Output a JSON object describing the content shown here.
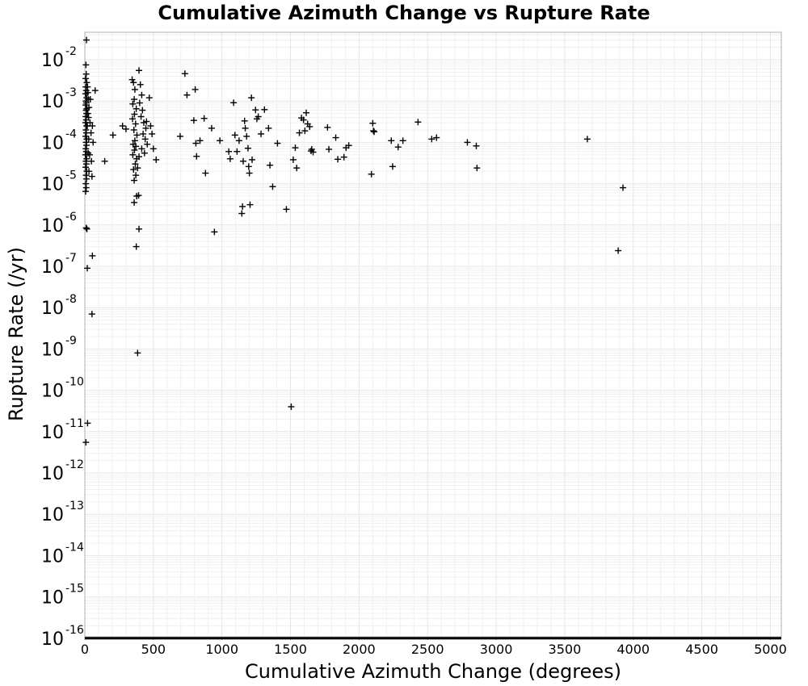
{
  "chart_data": {
    "type": "scatter",
    "title": "Cumulative Azimuth Change vs Rupture Rate",
    "xlabel": "Cumulative Azimuth Change (degrees)",
    "ylabel": "Rupture Rate (/yr)",
    "xlim": [
      0,
      5080
    ],
    "ylim": [
      1e-16,
      0.045
    ],
    "yscale": "log",
    "grid": true,
    "marker": "+",
    "marker_color": "#000000",
    "x_ticks": [
      "0",
      "500",
      "1000",
      "1500",
      "2000",
      "2500",
      "3000",
      "3500",
      "4000",
      "4500",
      "5000"
    ],
    "y_ticks": [
      {
        "base": "10",
        "exp": "-2"
      },
      {
        "base": "10",
        "exp": "-3"
      },
      {
        "base": "10",
        "exp": "-4"
      },
      {
        "base": "10",
        "exp": "-5"
      },
      {
        "base": "10",
        "exp": "-6"
      },
      {
        "base": "10",
        "exp": "-7"
      },
      {
        "base": "10",
        "exp": "-8"
      },
      {
        "base": "10",
        "exp": "-9"
      },
      {
        "base": "10",
        "exp": "-10"
      },
      {
        "base": "10",
        "exp": "-11"
      },
      {
        "base": "10",
        "exp": "-12"
      },
      {
        "base": "10",
        "exp": "-13"
      },
      {
        "base": "10",
        "exp": "-14"
      },
      {
        "base": "10",
        "exp": "-15"
      },
      {
        "base": "10",
        "exp": "-16"
      }
    ],
    "series": [
      {
        "points": [
          [
            12,
            0.03
          ],
          [
            8,
            0.0075
          ],
          [
            10,
            0.0045
          ],
          [
            6,
            0.0035
          ],
          [
            14,
            0.0028
          ],
          [
            7,
            0.0022
          ],
          [
            10,
            0.0018
          ],
          [
            5,
            0.0015
          ],
          [
            13,
            0.0012
          ],
          [
            8,
            0.001
          ],
          [
            11,
            0.0009
          ],
          [
            6,
            0.0008
          ],
          [
            14,
            0.00065
          ],
          [
            9,
            0.0006
          ],
          [
            12,
            0.0005
          ],
          [
            7,
            0.00042
          ],
          [
            10,
            0.00035
          ],
          [
            5,
            0.0003
          ],
          [
            13,
            0.00025
          ],
          [
            8,
            0.0002
          ],
          [
            11,
            0.00017
          ],
          [
            6,
            0.00014
          ],
          [
            14,
            0.00012
          ],
          [
            9,
            0.0001
          ],
          [
            12,
            8.5e-05
          ],
          [
            7,
            7e-05
          ],
          [
            10,
            6e-05
          ],
          [
            5,
            5e-05
          ],
          [
            13,
            4e-05
          ],
          [
            8,
            3.5e-05
          ],
          [
            11,
            3e-05
          ],
          [
            6,
            2.5e-05
          ],
          [
            14,
            2e-05
          ],
          [
            9,
            1.6e-05
          ],
          [
            12,
            1.3e-05
          ],
          [
            7,
            1e-05
          ],
          [
            10,
            8e-06
          ],
          [
            6,
            6.5e-06
          ],
          [
            20,
            0.0022
          ],
          [
            25,
            0.0011
          ],
          [
            22,
            0.0005
          ],
          [
            18,
            0.00025
          ],
          [
            28,
            0.00012
          ],
          [
            24,
            5.5e-05
          ],
          [
            30,
            2e-05
          ],
          [
            22,
            0.0016
          ],
          [
            30,
            0.0007
          ],
          [
            40,
            0.0011
          ],
          [
            45,
            0.00017
          ],
          [
            60,
            0.0001
          ],
          [
            75,
            0.0018
          ],
          [
            35,
            5e-05
          ],
          [
            48,
            3.5e-05
          ],
          [
            52,
            1.5e-05
          ],
          [
            27,
            0.0004
          ],
          [
            38,
            0.0003
          ],
          [
            55,
            0.00025
          ],
          [
            10,
            8.5e-07
          ],
          [
            15,
            8e-07
          ],
          [
            55,
            1.8e-07
          ],
          [
            18,
            9e-08
          ],
          [
            52,
            7e-09
          ],
          [
            20,
            1.6e-11
          ],
          [
            8,
            5.5e-12
          ],
          [
            145,
            3.5e-05
          ],
          [
            205,
            0.00015
          ],
          [
            275,
            0.00025
          ],
          [
            300,
            0.00021
          ],
          [
            345,
            0.0033
          ],
          [
            355,
            0.0028
          ],
          [
            365,
            0.0019
          ],
          [
            360,
            0.0011
          ],
          [
            350,
            0.00085
          ],
          [
            375,
            0.00065
          ],
          [
            362,
            0.00048
          ],
          [
            348,
            0.00037
          ],
          [
            370,
            0.00028
          ],
          [
            358,
            0.0002
          ],
          [
            380,
            0.00015
          ],
          [
            365,
            0.00011
          ],
          [
            352,
            9e-05
          ],
          [
            372,
            8e-05
          ],
          [
            362,
            6.5e-05
          ],
          [
            350,
            5e-05
          ],
          [
            378,
            4e-05
          ],
          [
            368,
            3e-05
          ],
          [
            355,
            2.2e-05
          ],
          [
            372,
            1.6e-05
          ],
          [
            360,
            1.2e-05
          ],
          [
            395,
            0.0055
          ],
          [
            405,
            0.0025
          ],
          [
            415,
            0.0014
          ],
          [
            400,
            0.0009
          ],
          [
            420,
            0.0006
          ],
          [
            410,
            0.00042
          ],
          [
            430,
            0.0003
          ],
          [
            445,
            0.00022
          ],
          [
            425,
            0.00016
          ],
          [
            440,
            0.00012
          ],
          [
            455,
            9e-05
          ],
          [
            415,
            7e-05
          ],
          [
            435,
            5.5e-05
          ],
          [
            395,
            4.5e-05
          ],
          [
            450,
            0.00032
          ],
          [
            470,
            0.0012
          ],
          [
            480,
            0.00025
          ],
          [
            490,
            0.00016
          ],
          [
            500,
            7e-05
          ],
          [
            520,
            3.8e-05
          ],
          [
            385,
            2.4e-05
          ],
          [
            378,
            5e-06
          ],
          [
            392,
            5.2e-06
          ],
          [
            360,
            3.5e-06
          ],
          [
            395,
            8e-07
          ],
          [
            375,
            3e-07
          ],
          [
            385,
            8e-10
          ],
          [
            695,
            0.00014
          ],
          [
            730,
            0.0046
          ],
          [
            745,
            0.0014
          ],
          [
            795,
            0.00034
          ],
          [
            805,
            0.0019
          ],
          [
            810,
            9.5e-05
          ],
          [
            815,
            4.6e-05
          ],
          [
            840,
            0.00011
          ],
          [
            870,
            0.00038
          ],
          [
            880,
            1.8e-05
          ],
          [
            925,
            0.00022
          ],
          [
            945,
            6.8e-07
          ],
          [
            985,
            0.00011
          ],
          [
            1050,
            6e-05
          ],
          [
            1060,
            4e-05
          ],
          [
            1085,
            0.00091
          ],
          [
            1095,
            0.00015
          ],
          [
            1110,
            6e-05
          ],
          [
            1125,
            0.00011
          ],
          [
            1145,
            1.9e-06
          ],
          [
            1150,
            2.8e-06
          ],
          [
            1155,
            3.5e-05
          ],
          [
            1165,
            0.00033
          ],
          [
            1170,
            0.00022
          ],
          [
            1180,
            0.00014
          ],
          [
            1190,
            7.2e-05
          ],
          [
            1195,
            2.6e-05
          ],
          [
            1200,
            1.8e-05
          ],
          [
            1205,
            3.1e-06
          ],
          [
            1215,
            0.0012
          ],
          [
            1220,
            3.8e-05
          ],
          [
            1245,
            0.00061
          ],
          [
            1255,
            0.00037
          ],
          [
            1265,
            0.00042
          ],
          [
            1285,
            0.00016
          ],
          [
            1310,
            0.00062
          ],
          [
            1340,
            0.00022
          ],
          [
            1350,
            2.8e-05
          ],
          [
            1370,
            8.5e-06
          ],
          [
            1405,
            9.5e-05
          ],
          [
            1470,
            2.4e-06
          ],
          [
            1505,
            4e-11
          ],
          [
            1520,
            3.8e-05
          ],
          [
            1535,
            7.4e-05
          ],
          [
            1545,
            2.4e-05
          ],
          [
            1565,
            0.00017
          ],
          [
            1580,
            0.00039
          ],
          [
            1595,
            0.00035
          ],
          [
            1605,
            0.00019
          ],
          [
            1615,
            0.00052
          ],
          [
            1625,
            0.00028
          ],
          [
            1640,
            0.00024
          ],
          [
            1650,
            6.2e-05
          ],
          [
            1655,
            6.8e-05
          ],
          [
            1665,
            5.8e-05
          ],
          [
            1770,
            0.00023
          ],
          [
            1780,
            6.8e-05
          ],
          [
            1830,
            0.00013
          ],
          [
            1845,
            3.9e-05
          ],
          [
            1890,
            4.4e-05
          ],
          [
            1905,
            7.4e-05
          ],
          [
            1925,
            8.4e-05
          ],
          [
            2090,
            1.7e-05
          ],
          [
            2100,
            0.00029
          ],
          [
            2110,
            0.00018
          ],
          [
            2105,
            0.00019
          ],
          [
            2235,
            0.00011
          ],
          [
            2245,
            2.6e-05
          ],
          [
            2285,
            7.7e-05
          ],
          [
            2320,
            0.00011
          ],
          [
            2430,
            0.00031
          ],
          [
            2530,
            0.00012
          ],
          [
            2565,
            0.00013
          ],
          [
            2790,
            0.0001
          ],
          [
            2855,
            8.2e-05
          ],
          [
            2860,
            2.4e-05
          ],
          [
            3665,
            0.00012
          ],
          [
            3890,
            2.4e-07
          ],
          [
            3925,
            8e-06
          ]
        ]
      }
    ],
    "floor_band": {
      "x_range": [
        0,
        5080
      ],
      "y": 1e-16
    }
  }
}
